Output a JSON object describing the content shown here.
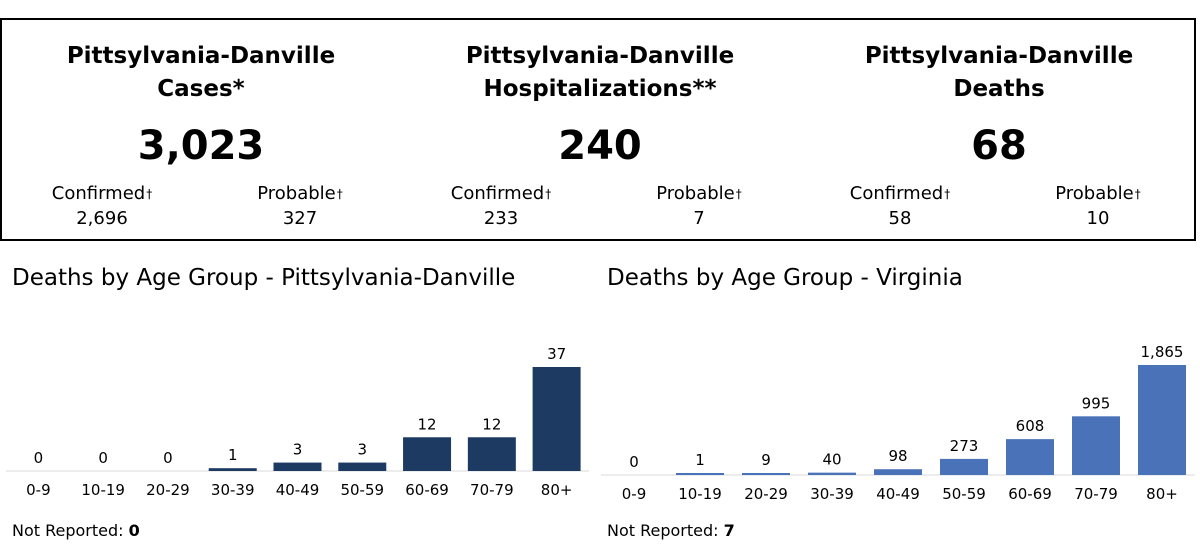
{
  "summary": [
    {
      "title_line1": "Pittsylvania-Danville",
      "title_line2": "Cases*",
      "total": "3,023",
      "confirmed_label": "Confirmed",
      "confirmed_value": "2,696",
      "probable_label": "Probable",
      "probable_value": "327",
      "dagger": "†"
    },
    {
      "title_line1": "Pittsylvania-Danville",
      "title_line2": "Hospitalizations**",
      "total": "240",
      "confirmed_label": "Confirmed",
      "confirmed_value": "233",
      "probable_label": "Probable",
      "probable_value": "7",
      "dagger": "†"
    },
    {
      "title_line1": "Pittsylvania-Danville",
      "title_line2": "Deaths",
      "total": "68",
      "confirmed_label": "Confirmed",
      "confirmed_value": "58",
      "probable_label": "Probable",
      "probable_value": "10",
      "dagger": "†"
    }
  ],
  "chart_data": [
    {
      "type": "bar",
      "title": "Deaths by Age Group - Pittsylvania-Danville",
      "categories": [
        "0-9",
        "10-19",
        "20-29",
        "30-39",
        "40-49",
        "50-59",
        "60-69",
        "70-79",
        "80+"
      ],
      "values": [
        0,
        0,
        0,
        1,
        3,
        3,
        12,
        12,
        37
      ],
      "value_labels": [
        "0",
        "0",
        "0",
        "1",
        "3",
        "3",
        "12",
        "12",
        "37"
      ],
      "color": "#1d3a63",
      "not_reported_label": "Not Reported:",
      "not_reported_value": "0"
    },
    {
      "type": "bar",
      "title": "Deaths by Age Group - Virginia",
      "categories": [
        "0-9",
        "10-19",
        "20-29",
        "30-39",
        "40-49",
        "50-59",
        "60-69",
        "70-79",
        "80+"
      ],
      "values": [
        0,
        1,
        9,
        40,
        98,
        273,
        608,
        995,
        1865
      ],
      "value_labels": [
        "0",
        "1",
        "9",
        "40",
        "98",
        "273",
        "608",
        "995",
        "1,865"
      ],
      "color": "#4a72b8",
      "not_reported_label": "Not Reported:",
      "not_reported_value": "7"
    }
  ]
}
